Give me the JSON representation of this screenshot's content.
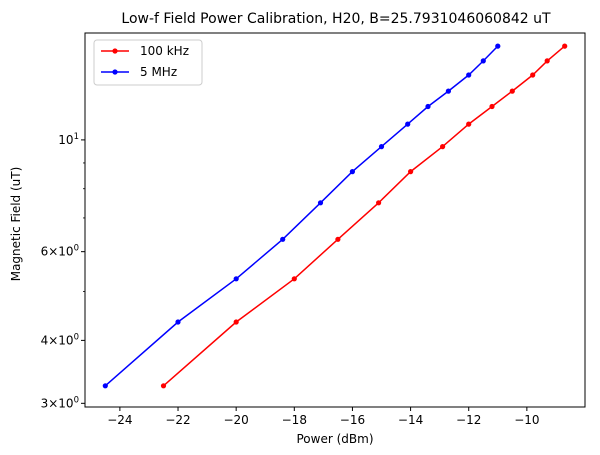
{
  "chart_data": {
    "type": "line",
    "title": "Low-f Field Power Calibration, H20, B=25.7931046060842 uT",
    "xlabel": "Power (dBm)",
    "ylabel": "Magnetic Field (uT)",
    "xlim": [
      -25.2,
      -8.0
    ],
    "ylim": [
      2.95,
      16.3
    ],
    "yscale": "log",
    "grid": false,
    "legend_location": "top-left",
    "x_ticks": [
      {
        "value": -24,
        "label": "−24"
      },
      {
        "value": -22,
        "label": "−22"
      },
      {
        "value": -20,
        "label": "−20"
      },
      {
        "value": -18,
        "label": "−18"
      },
      {
        "value": -16,
        "label": "−16"
      },
      {
        "value": -14,
        "label": "−14"
      },
      {
        "value": -12,
        "label": "−12"
      },
      {
        "value": -10,
        "label": "−10"
      }
    ],
    "y_ticks": [
      {
        "value": 3,
        "base": "3",
        "sup": "0"
      },
      {
        "value": 4,
        "base": "4",
        "sup": "0"
      },
      {
        "value": 6,
        "base": "6",
        "sup": "0"
      },
      {
        "value": 10,
        "text": "10",
        "sup": "1"
      }
    ],
    "y_minor_ticks": [
      5,
      7,
      8,
      9
    ],
    "series": [
      {
        "name": "100 kHz",
        "color": "#ff0000",
        "x": [
          -22.5,
          -20.0,
          -18.0,
          -16.5,
          -15.1,
          -14.0,
          -12.9,
          -12.0,
          -11.2,
          -10.5,
          -9.8,
          -9.3,
          -8.7
        ],
        "y": [
          3.25,
          4.35,
          5.3,
          6.35,
          7.5,
          8.65,
          9.7,
          10.75,
          11.65,
          12.5,
          13.45,
          14.35,
          15.35
        ]
      },
      {
        "name": "5 MHz",
        "color": "#0000ff",
        "x": [
          -24.5,
          -22.0,
          -20.0,
          -18.4,
          -17.1,
          -16.0,
          -15.0,
          -14.1,
          -13.4,
          -12.7,
          -12.0,
          -11.5,
          -11.0
        ],
        "y": [
          3.25,
          4.35,
          5.3,
          6.35,
          7.5,
          8.65,
          9.7,
          10.75,
          11.65,
          12.5,
          13.45,
          14.35,
          15.35
        ]
      }
    ]
  }
}
